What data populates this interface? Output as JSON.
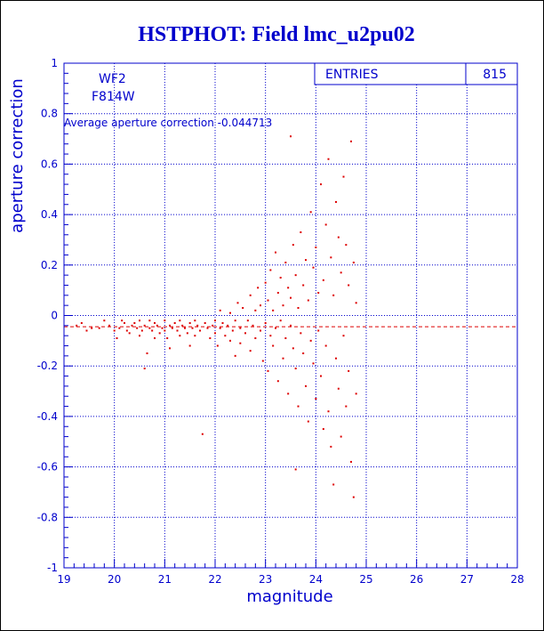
{
  "chart_data": {
    "type": "scatter",
    "title": "HSTPHOT: Field lmc_u2pu02",
    "xlabel": "magnitude",
    "ylabel": "aperture correction",
    "xlim": [
      19,
      28
    ],
    "ylim": [
      -1,
      1
    ],
    "x_ticks": [
      "19",
      "20",
      "21",
      "22",
      "23",
      "24",
      "25",
      "26",
      "27",
      "28"
    ],
    "y_ticks": [
      "-1",
      "-0.8",
      "-0.6",
      "-0.4",
      "-0.2",
      "0",
      "0.2",
      "0.4",
      "0.6",
      "0.8",
      "1"
    ],
    "grid": true,
    "legend": {
      "entries_label": "ENTRIES",
      "entries_value": "815"
    },
    "annotations": {
      "camera": "WF2",
      "filter": "F814W",
      "average_text": "Average aperture correction -0.044713"
    },
    "average_line_y": -0.044713,
    "point_color": "#dd0000",
    "axis_color": "#0000cc",
    "points": [
      [
        19.25,
        -0.04
      ],
      [
        19.35,
        -0.03
      ],
      [
        19.45,
        -0.06
      ],
      [
        19.55,
        -0.05
      ],
      [
        19.7,
        -0.05
      ],
      [
        19.8,
        -0.02
      ],
      [
        19.9,
        -0.04
      ],
      [
        20.0,
        -0.06
      ],
      [
        20.05,
        -0.09
      ],
      [
        20.1,
        -0.05
      ],
      [
        20.15,
        -0.02
      ],
      [
        20.2,
        -0.03
      ],
      [
        20.25,
        -0.06
      ],
      [
        20.3,
        -0.07
      ],
      [
        20.35,
        -0.04
      ],
      [
        20.4,
        -0.03
      ],
      [
        20.45,
        -0.05
      ],
      [
        20.5,
        -0.08
      ],
      [
        20.5,
        -0.02
      ],
      [
        20.55,
        -0.06
      ],
      [
        20.6,
        -0.04
      ],
      [
        20.6,
        -0.21
      ],
      [
        20.65,
        -0.15
      ],
      [
        20.7,
        -0.05
      ],
      [
        20.7,
        -0.02
      ],
      [
        20.75,
        -0.06
      ],
      [
        20.8,
        -0.03
      ],
      [
        20.8,
        -0.09
      ],
      [
        20.85,
        -0.04
      ],
      [
        20.9,
        -0.07
      ],
      [
        20.95,
        -0.05
      ],
      [
        21.0,
        -0.02
      ],
      [
        21.0,
        -0.06
      ],
      [
        21.05,
        -0.09
      ],
      [
        21.1,
        -0.04
      ],
      [
        21.1,
        -0.13
      ],
      [
        21.15,
        -0.05
      ],
      [
        21.2,
        -0.03
      ],
      [
        21.25,
        -0.06
      ],
      [
        21.3,
        -0.02
      ],
      [
        21.3,
        -0.08
      ],
      [
        21.35,
        -0.04
      ],
      [
        21.4,
        -0.05
      ],
      [
        21.45,
        -0.07
      ],
      [
        21.5,
        -0.03
      ],
      [
        21.5,
        -0.12
      ],
      [
        21.55,
        -0.05
      ],
      [
        21.6,
        -0.02
      ],
      [
        21.6,
        -0.08
      ],
      [
        21.65,
        -0.04
      ],
      [
        21.7,
        -0.06
      ],
      [
        21.75,
        -0.47
      ],
      [
        21.8,
        -0.03
      ],
      [
        21.85,
        -0.05
      ],
      [
        21.9,
        -0.09
      ],
      [
        21.95,
        -0.04
      ],
      [
        22.0,
        -0.02
      ],
      [
        22.0,
        -0.07
      ],
      [
        22.05,
        -0.12
      ],
      [
        22.1,
        -0.05
      ],
      [
        22.1,
        0.02
      ],
      [
        22.15,
        -0.03
      ],
      [
        22.2,
        -0.08
      ],
      [
        22.25,
        -0.04
      ],
      [
        22.3,
        0.01
      ],
      [
        22.3,
        -0.1
      ],
      [
        22.35,
        -0.06
      ],
      [
        22.4,
        -0.02
      ],
      [
        22.4,
        -0.16
      ],
      [
        22.45,
        0.05
      ],
      [
        22.5,
        -0.05
      ],
      [
        22.5,
        -0.11
      ],
      [
        22.55,
        0.03
      ],
      [
        22.6,
        -0.07
      ],
      [
        22.65,
        -0.02
      ],
      [
        22.7,
        0.08
      ],
      [
        22.7,
        -0.14
      ],
      [
        22.75,
        -0.04
      ],
      [
        22.8,
        0.02
      ],
      [
        22.8,
        -0.09
      ],
      [
        22.85,
        0.11
      ],
      [
        22.9,
        -0.06
      ],
      [
        22.9,
        0.04
      ],
      [
        22.95,
        -0.18
      ],
      [
        23.0,
        0.13
      ],
      [
        23.0,
        -0.03
      ],
      [
        23.05,
        0.06
      ],
      [
        23.05,
        -0.22
      ],
      [
        23.1,
        0.18
      ],
      [
        23.1,
        -0.08
      ],
      [
        23.15,
        0.02
      ],
      [
        23.15,
        -0.12
      ],
      [
        23.2,
        0.25
      ],
      [
        23.2,
        -0.05
      ],
      [
        23.25,
        0.09
      ],
      [
        23.25,
        -0.26
      ],
      [
        23.3,
        0.15
      ],
      [
        23.3,
        -0.02
      ],
      [
        23.35,
        0.04
      ],
      [
        23.35,
        -0.17
      ],
      [
        23.4,
        0.21
      ],
      [
        23.4,
        -0.09
      ],
      [
        23.45,
        0.11
      ],
      [
        23.45,
        -0.31
      ],
      [
        23.5,
        0.07
      ],
      [
        23.5,
        -0.04
      ],
      [
        23.55,
        0.28
      ],
      [
        23.55,
        -0.13
      ],
      [
        23.6,
        0.16
      ],
      [
        23.6,
        -0.21
      ],
      [
        23.65,
        0.03
      ],
      [
        23.65,
        -0.36
      ],
      [
        23.7,
        0.33
      ],
      [
        23.7,
        -0.07
      ],
      [
        23.75,
        0.12
      ],
      [
        23.75,
        -0.15
      ],
      [
        23.8,
        0.22
      ],
      [
        23.8,
        -0.28
      ],
      [
        23.85,
        0.06
      ],
      [
        23.85,
        -0.42
      ],
      [
        23.9,
        0.41
      ],
      [
        23.9,
        -0.1
      ],
      [
        23.95,
        0.19
      ],
      [
        23.95,
        -0.19
      ],
      [
        24.0,
        0.27
      ],
      [
        24.0,
        -0.33
      ],
      [
        24.05,
        0.09
      ],
      [
        24.05,
        -0.06
      ],
      [
        24.1,
        0.52
      ],
      [
        24.1,
        -0.24
      ],
      [
        24.15,
        0.14
      ],
      [
        24.15,
        -0.45
      ],
      [
        24.2,
        0.36
      ],
      [
        24.2,
        -0.12
      ],
      [
        24.25,
        0.62
      ],
      [
        24.25,
        -0.38
      ],
      [
        24.3,
        0.23
      ],
      [
        24.3,
        -0.52
      ],
      [
        24.35,
        0.08
      ],
      [
        24.35,
        -0.67
      ],
      [
        24.4,
        0.45
      ],
      [
        24.4,
        -0.17
      ],
      [
        24.45,
        0.31
      ],
      [
        24.45,
        -0.29
      ],
      [
        24.5,
        0.17
      ],
      [
        24.5,
        -0.48
      ],
      [
        24.55,
        0.55
      ],
      [
        24.55,
        -0.08
      ],
      [
        24.6,
        0.28
      ],
      [
        24.6,
        -0.36
      ],
      [
        24.65,
        0.12
      ],
      [
        24.65,
        -0.22
      ],
      [
        24.7,
        0.69
      ],
      [
        24.7,
        -0.58
      ],
      [
        24.75,
        0.21
      ],
      [
        24.75,
        -0.72
      ],
      [
        24.8,
        0.05
      ],
      [
        24.8,
        -0.31
      ],
      [
        23.6,
        -0.61
      ],
      [
        23.5,
        0.71
      ]
    ]
  }
}
